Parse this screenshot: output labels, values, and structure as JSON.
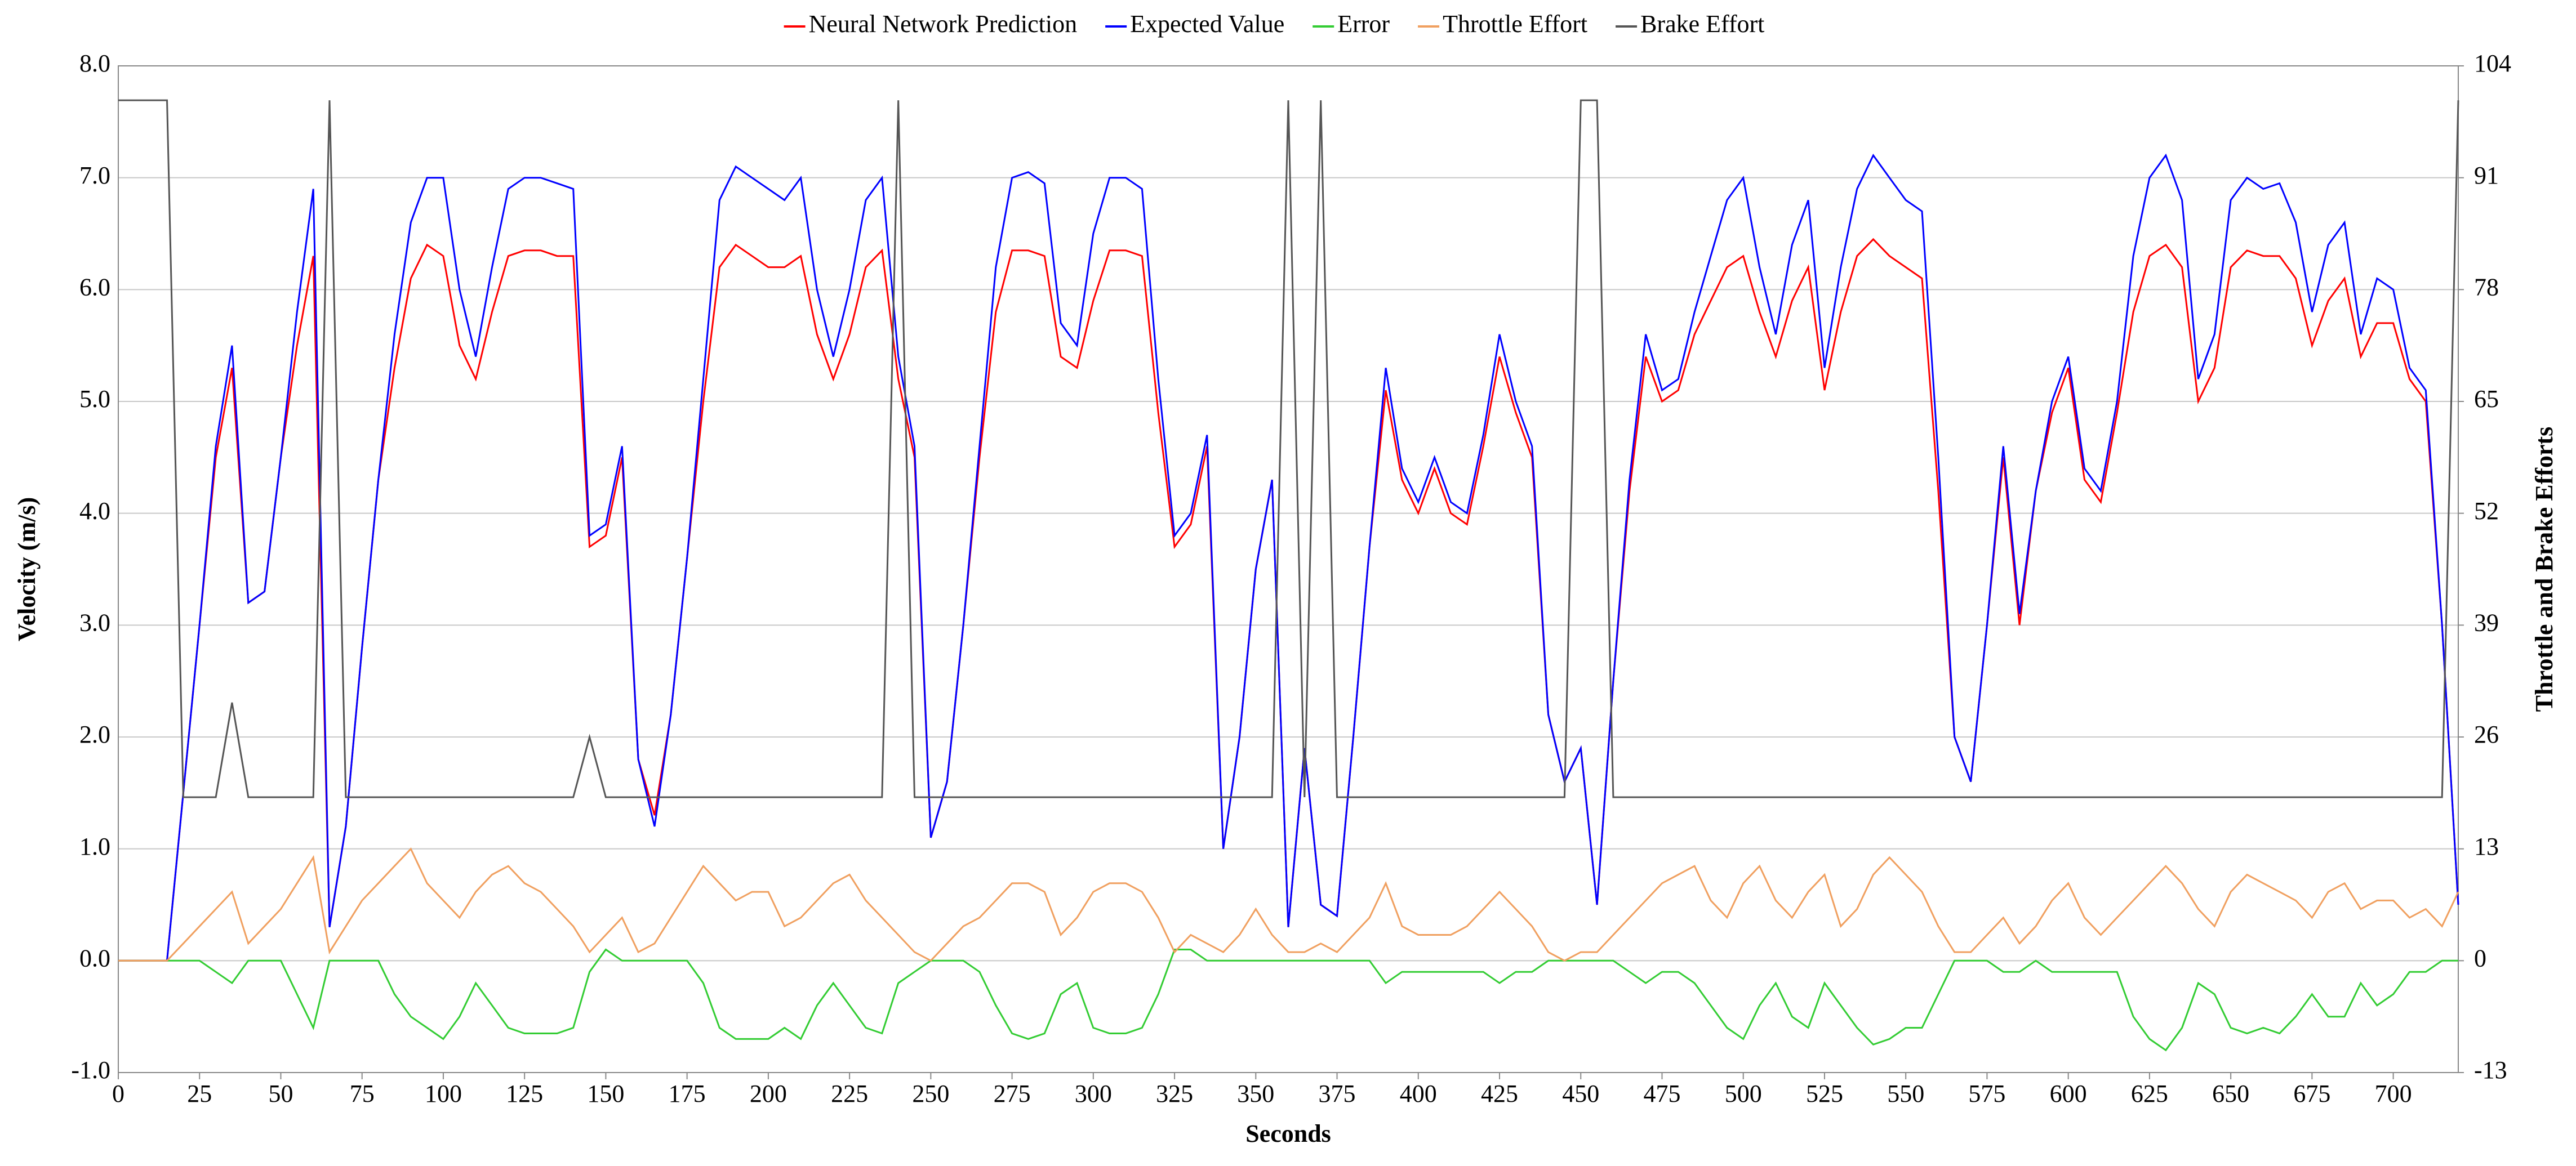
{
  "chart_data": {
    "type": "line",
    "xlabel": "Seconds",
    "ylabel": "Velocity (m/s)",
    "y2label": "Throttle and Brake Efforts",
    "x": [
      0,
      5,
      10,
      15,
      20,
      25,
      30,
      35,
      40,
      45,
      50,
      55,
      60,
      65,
      70,
      75,
      80,
      85,
      90,
      95,
      100,
      105,
      110,
      115,
      120,
      125,
      130,
      135,
      140,
      145,
      150,
      155,
      160,
      165,
      170,
      175,
      180,
      185,
      190,
      195,
      200,
      205,
      210,
      215,
      220,
      225,
      230,
      235,
      240,
      245,
      250,
      255,
      260,
      265,
      270,
      275,
      280,
      285,
      290,
      295,
      300,
      305,
      310,
      315,
      320,
      325,
      330,
      335,
      340,
      345,
      350,
      355,
      360,
      365,
      370,
      375,
      380,
      385,
      390,
      395,
      400,
      405,
      410,
      415,
      420,
      425,
      430,
      435,
      440,
      445,
      450,
      455,
      460,
      465,
      470,
      475,
      480,
      485,
      490,
      495,
      500,
      505,
      510,
      515,
      520,
      525,
      530,
      535,
      540,
      545,
      550,
      555,
      560,
      565,
      570,
      575,
      580,
      585,
      590,
      595,
      600,
      605,
      610,
      615,
      620,
      625,
      630,
      635,
      640,
      645,
      650,
      655,
      660,
      665,
      670,
      675,
      680,
      685,
      690,
      695,
      700,
      705,
      710,
      715,
      720
    ],
    "series": [
      {
        "name": "Neural Network Prediction",
        "color": "#ff0000",
        "values": [
          0,
          0,
          0,
          0,
          1.5,
          3.0,
          4.5,
          5.3,
          3.2,
          3.3,
          4.5,
          5.5,
          6.3,
          0.3,
          1.2,
          2.8,
          4.3,
          5.3,
          6.1,
          6.4,
          6.3,
          5.5,
          5.2,
          5.8,
          6.3,
          6.35,
          6.35,
          6.3,
          6.3,
          3.7,
          3.8,
          4.5,
          1.8,
          1.3,
          2.2,
          3.6,
          5.0,
          6.2,
          6.4,
          6.3,
          6.2,
          6.2,
          6.3,
          5.6,
          5.2,
          5.6,
          6.2,
          6.35,
          5.2,
          4.5,
          1.1,
          1.6,
          3.0,
          4.5,
          5.8,
          6.35,
          6.35,
          6.3,
          5.4,
          5.3,
          5.9,
          6.35,
          6.35,
          6.3,
          4.9,
          3.7,
          3.9,
          4.6,
          1.0,
          2.0,
          3.5,
          4.3,
          0.3,
          1.9,
          0.5,
          0.4,
          2.0,
          3.7,
          5.1,
          4.3,
          4.0,
          4.4,
          4.0,
          3.9,
          4.6,
          5.4,
          4.9,
          4.5,
          2.2,
          1.6,
          1.9,
          0.5,
          2.5,
          4.2,
          5.4,
          5.0,
          5.1,
          5.6,
          5.9,
          6.2,
          6.3,
          5.8,
          5.4,
          5.9,
          6.2,
          5.1,
          5.8,
          6.3,
          6.45,
          6.3,
          6.2,
          6.1,
          4.2,
          2.0,
          1.6,
          3.0,
          4.5,
          3.0,
          4.2,
          4.9,
          5.3,
          4.3,
          4.1,
          4.9,
          5.8,
          6.3,
          6.4,
          6.2,
          5.0,
          5.3,
          6.2,
          6.35,
          6.3,
          6.3,
          6.1,
          5.5,
          5.9,
          6.1,
          5.4,
          5.7,
          5.7,
          5.2,
          5.0,
          3.0,
          0.5
        ]
      },
      {
        "name": "Expected Value",
        "color": "#0000ff",
        "values": [
          0,
          0,
          0,
          0,
          1.5,
          3.0,
          4.6,
          5.5,
          3.2,
          3.3,
          4.5,
          5.8,
          6.9,
          0.3,
          1.2,
          2.8,
          4.3,
          5.6,
          6.6,
          7.0,
          7.0,
          6.0,
          5.4,
          6.2,
          6.9,
          7.0,
          7.0,
          6.95,
          6.9,
          3.8,
          3.9,
          4.6,
          1.8,
          1.2,
          2.2,
          3.6,
          5.2,
          6.8,
          7.1,
          7.0,
          6.9,
          6.8,
          7.0,
          6.0,
          5.4,
          6.0,
          6.8,
          7.0,
          5.4,
          4.6,
          1.1,
          1.6,
          3.0,
          4.6,
          6.2,
          7.0,
          7.05,
          6.95,
          5.7,
          5.5,
          6.5,
          7.0,
          7.0,
          6.9,
          5.2,
          3.8,
          4.0,
          4.7,
          1.0,
          2.0,
          3.5,
          4.3,
          0.3,
          1.9,
          0.5,
          0.4,
          2.0,
          3.7,
          5.3,
          4.4,
          4.1,
          4.5,
          4.1,
          4.0,
          4.7,
          5.6,
          5.0,
          4.6,
          2.2,
          1.6,
          1.9,
          0.5,
          2.5,
          4.3,
          5.6,
          5.1,
          5.2,
          5.8,
          6.3,
          6.8,
          7.0,
          6.2,
          5.6,
          6.4,
          6.8,
          5.3,
          6.2,
          6.9,
          7.2,
          7.0,
          6.8,
          6.7,
          4.5,
          2.0,
          1.6,
          3.0,
          4.6,
          3.1,
          4.2,
          5.0,
          5.4,
          4.4,
          4.2,
          5.0,
          6.3,
          7.0,
          7.2,
          6.8,
          5.2,
          5.6,
          6.8,
          7.0,
          6.9,
          6.95,
          6.6,
          5.8,
          6.4,
          6.6,
          5.6,
          6.1,
          6.0,
          5.3,
          5.1,
          3.0,
          0.5
        ]
      },
      {
        "name": "Error",
        "color": "#33cc33",
        "values": [
          0,
          0,
          0,
          0,
          0,
          0,
          -0.1,
          -0.2,
          0,
          0,
          0,
          -0.3,
          -0.6,
          0,
          0,
          0,
          0,
          -0.3,
          -0.5,
          -0.6,
          -0.7,
          -0.5,
          -0.2,
          -0.4,
          -0.6,
          -0.65,
          -0.65,
          -0.65,
          -0.6,
          -0.1,
          0.1,
          0,
          0,
          0,
          0,
          0,
          -0.2,
          -0.6,
          -0.7,
          -0.7,
          -0.7,
          -0.6,
          -0.7,
          -0.4,
          -0.2,
          -0.4,
          -0.6,
          -0.65,
          -0.2,
          -0.1,
          0,
          0,
          0,
          -0.1,
          -0.4,
          -0.65,
          -0.7,
          -0.65,
          -0.3,
          -0.2,
          -0.6,
          -0.65,
          -0.65,
          -0.6,
          -0.3,
          0.1,
          0.1,
          0,
          0,
          0,
          0,
          0,
          0,
          0,
          0,
          0,
          0,
          0,
          -0.2,
          -0.1,
          -0.1,
          -0.1,
          -0.1,
          -0.1,
          -0.1,
          -0.2,
          -0.1,
          -0.1,
          0,
          0,
          0,
          0,
          0,
          -0.1,
          -0.2,
          -0.1,
          -0.1,
          -0.2,
          -0.4,
          -0.6,
          -0.7,
          -0.4,
          -0.2,
          -0.5,
          -0.6,
          -0.2,
          -0.4,
          -0.6,
          -0.75,
          -0.7,
          -0.6,
          -0.6,
          -0.3,
          0,
          0,
          0,
          -0.1,
          -0.1,
          0,
          -0.1,
          -0.1,
          -0.1,
          -0.1,
          -0.1,
          -0.5,
          -0.7,
          -0.8,
          -0.6,
          -0.2,
          -0.3,
          -0.6,
          -0.65,
          -0.6,
          -0.65,
          -0.5,
          -0.3,
          -0.5,
          -0.5,
          -0.2,
          -0.4,
          -0.3,
          -0.1,
          -0.1,
          0,
          0
        ]
      },
      {
        "name": "Throttle Effort",
        "color": "#f0a060",
        "axis": "y2",
        "values": [
          0,
          0,
          0,
          0,
          2,
          4,
          6,
          8,
          2,
          4,
          6,
          9,
          12,
          1,
          4,
          7,
          9,
          11,
          13,
          9,
          7,
          5,
          8,
          10,
          11,
          9,
          8,
          6,
          4,
          1,
          3,
          5,
          1,
          2,
          5,
          8,
          11,
          9,
          7,
          8,
          8,
          4,
          5,
          7,
          9,
          10,
          7,
          5,
          3,
          1,
          0,
          2,
          4,
          5,
          7,
          9,
          9,
          8,
          3,
          5,
          8,
          9,
          9,
          8,
          5,
          1,
          3,
          2,
          1,
          3,
          6,
          3,
          1,
          1,
          2,
          1,
          3,
          5,
          9,
          4,
          3,
          3,
          3,
          4,
          6,
          8,
          6,
          4,
          1,
          0,
          1,
          1,
          3,
          5,
          7,
          9,
          10,
          11,
          7,
          5,
          9,
          11,
          7,
          5,
          8,
          10,
          4,
          6,
          10,
          12,
          10,
          8,
          4,
          1,
          1,
          3,
          5,
          2,
          4,
          7,
          9,
          5,
          3,
          5,
          7,
          9,
          11,
          9,
          6,
          4,
          8,
          10,
          9,
          8,
          7,
          5,
          8,
          9,
          6,
          7,
          7,
          5,
          6,
          4,
          8
        ]
      },
      {
        "name": "Brake Effort",
        "color": "#555555",
        "axis": "y2",
        "values": [
          100,
          100,
          100,
          100,
          19,
          19,
          19,
          30,
          19,
          19,
          19,
          19,
          19,
          100,
          19,
          19,
          19,
          19,
          19,
          19,
          19,
          19,
          19,
          19,
          19,
          19,
          19,
          19,
          19,
          26,
          19,
          19,
          19,
          19,
          19,
          19,
          19,
          19,
          19,
          19,
          19,
          19,
          19,
          19,
          19,
          19,
          19,
          19,
          100,
          19,
          19,
          19,
          19,
          19,
          19,
          19,
          19,
          19,
          19,
          19,
          19,
          19,
          19,
          19,
          19,
          19,
          19,
          19,
          19,
          19,
          19,
          19,
          100,
          19,
          100,
          19,
          19,
          19,
          19,
          19,
          19,
          19,
          19,
          19,
          19,
          19,
          19,
          19,
          19,
          19,
          100,
          100,
          19,
          19,
          19,
          19,
          19,
          19,
          19,
          19,
          19,
          19,
          19,
          19,
          19,
          19,
          19,
          19,
          19,
          19,
          19,
          19,
          19,
          19,
          19,
          19,
          19,
          19,
          19,
          19,
          19,
          19,
          19,
          19,
          19,
          19,
          19,
          19,
          19,
          19,
          19,
          19,
          19,
          19,
          19,
          19,
          19,
          19,
          19,
          19,
          19,
          19,
          19,
          19,
          100
        ]
      }
    ],
    "xlim": [
      0,
      720
    ],
    "xticks": [
      0,
      25,
      50,
      75,
      100,
      125,
      150,
      175,
      200,
      225,
      250,
      275,
      300,
      325,
      350,
      375,
      400,
      425,
      450,
      475,
      500,
      525,
      550,
      575,
      600,
      625,
      650,
      675,
      700
    ],
    "ylim": [
      -1,
      8
    ],
    "yticks": [
      {
        "value": -1,
        "label": "-1.0"
      },
      {
        "value": 0,
        "label": "0.0"
      },
      {
        "value": 1,
        "label": "1.0"
      },
      {
        "value": 2,
        "label": "2.0"
      },
      {
        "value": 3,
        "label": "3.0"
      },
      {
        "value": 4,
        "label": "4.0"
      },
      {
        "value": 5,
        "label": "5.0"
      },
      {
        "value": 6,
        "label": "6.0"
      },
      {
        "value": 7,
        "label": "7.0"
      },
      {
        "value": 8,
        "label": "8.0"
      }
    ],
    "y2lim": [
      -13,
      104
    ],
    "y2ticks": [
      -13,
      0,
      13,
      26,
      39,
      52,
      65,
      78,
      91,
      104
    ],
    "grid": true,
    "legend": "top"
  }
}
